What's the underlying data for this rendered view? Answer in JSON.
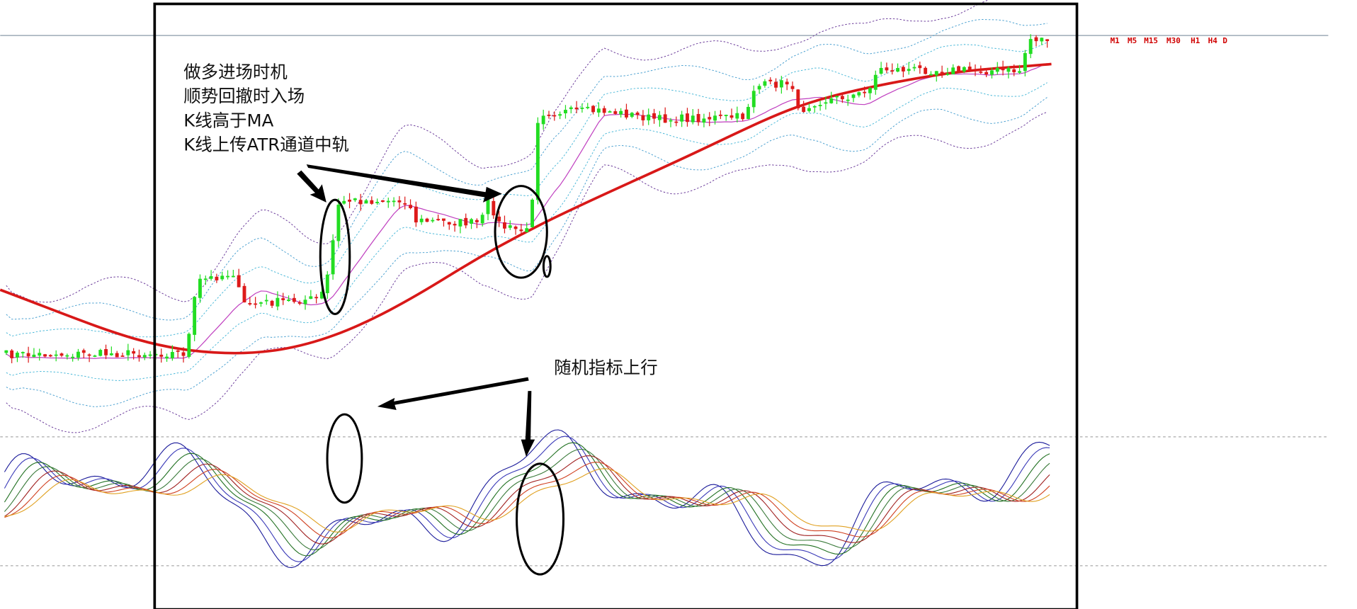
{
  "annotations": {
    "long_entry": [
      "做多进场时机",
      "顺势回撤时入场",
      "K线高于MA",
      "K线上传ATR通道中轨"
    ],
    "stochastic_note": "随机指标上行"
  },
  "timeframes": [
    "M1",
    "M5",
    "M15",
    "M30",
    "H1",
    "H4",
    "D"
  ]
}
